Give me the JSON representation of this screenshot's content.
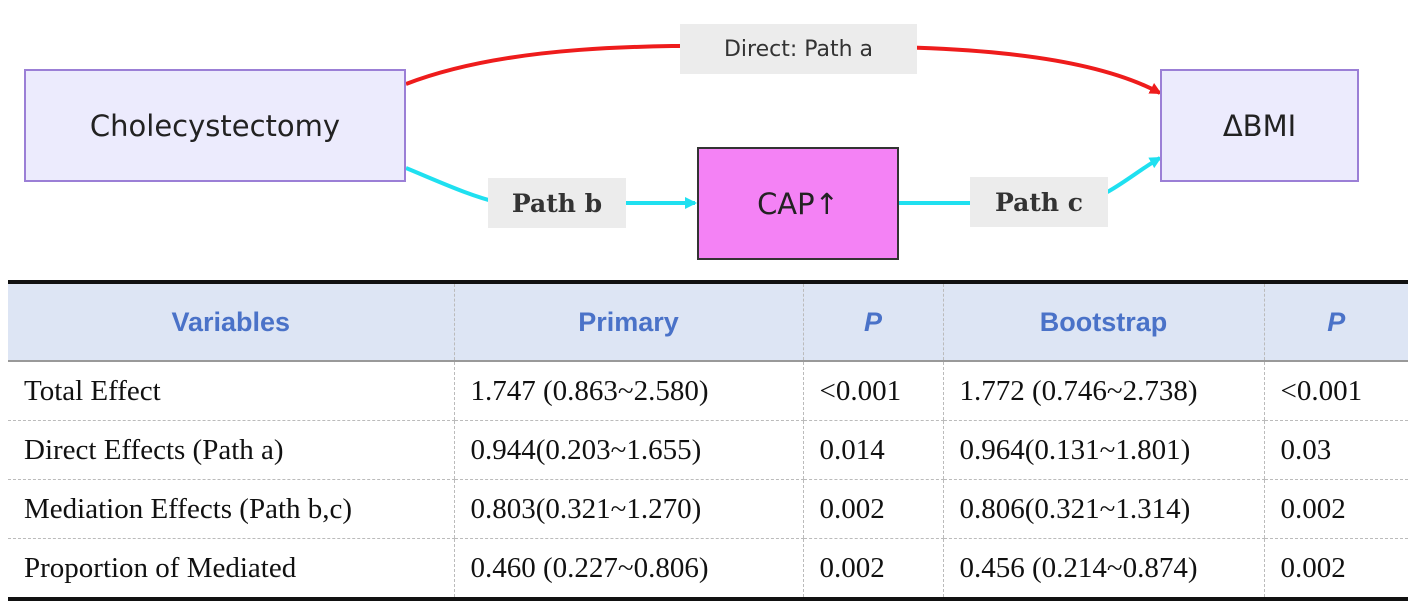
{
  "diagram": {
    "nodes": {
      "exposure": "Cholecystectomy",
      "mediator": "CAP↑",
      "outcome": "ΔBMI"
    },
    "paths": {
      "a": "Direct: Path a",
      "b": "Path b",
      "c": "Path c"
    },
    "colors": {
      "direct_path": "#ee1c1c",
      "mediated_path": "#1fe0f0",
      "mediator_fill": "#f482f5",
      "node_fill": "#ecebfd",
      "node_border": "#9b7fd6",
      "table_header_fill": "#dde5f4",
      "table_header_text": "#4a72c8"
    }
  },
  "table": {
    "headers": [
      "Variables",
      "Primary",
      "P",
      "Bootstrap",
      "P"
    ],
    "rows": [
      [
        "Total Effect",
        "1.747 (0.863~2.580)",
        "<0.001",
        "1.772 (0.746~2.738)",
        "<0.001"
      ],
      [
        "Direct Effects (Path a)",
        "0.944(0.203~1.655)",
        "0.014",
        "0.964(0.131~1.801)",
        "0.03"
      ],
      [
        "Mediation Effects (Path b,c)",
        "0.803(0.321~1.270)",
        "0.002",
        "0.806(0.321~1.314)",
        "0.002"
      ],
      [
        "Proportion of Mediated",
        "0.460 (0.227~0.806)",
        "0.002",
        "0.456 (0.214~0.874)",
        "0.002"
      ]
    ]
  }
}
